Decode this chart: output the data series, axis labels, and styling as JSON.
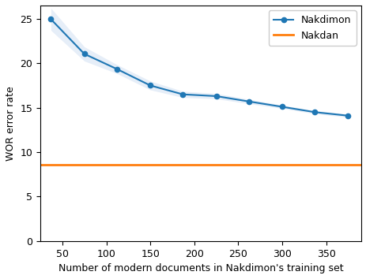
{
  "x": [
    37,
    75,
    112,
    150,
    187,
    225,
    262,
    300,
    337,
    375
  ],
  "y_nakdimon": [
    24.95,
    21.05,
    19.35,
    17.5,
    16.5,
    16.3,
    15.7,
    15.1,
    14.5,
    14.1
  ],
  "y_nakdimon_upper": [
    26.2,
    21.85,
    19.85,
    18.0,
    16.85,
    16.6,
    15.95,
    15.28,
    14.68,
    14.28
  ],
  "y_nakdimon_lower": [
    23.7,
    20.25,
    18.85,
    17.0,
    16.15,
    16.0,
    15.45,
    14.92,
    14.32,
    13.92
  ],
  "nakdan_value": 8.6,
  "nakdimon_color": "#1f77b4",
  "nakdimon_fill_color": "#aec7e8",
  "nakdan_color": "#ff7f0e",
  "xlabel": "Number of modern documents in Nakdimon's training set",
  "ylabel": "WOR error rate",
  "xlim": [
    25,
    390
  ],
  "ylim": [
    0,
    26.5
  ],
  "yticks": [
    0,
    5,
    10,
    15,
    20,
    25
  ],
  "xticks": [
    50,
    100,
    150,
    200,
    250,
    300,
    350
  ],
  "legend_nakdimon": "Nakdimon",
  "legend_nakdan": "Nakdan",
  "figsize": [
    4.64,
    3.54
  ],
  "dpi": 100
}
